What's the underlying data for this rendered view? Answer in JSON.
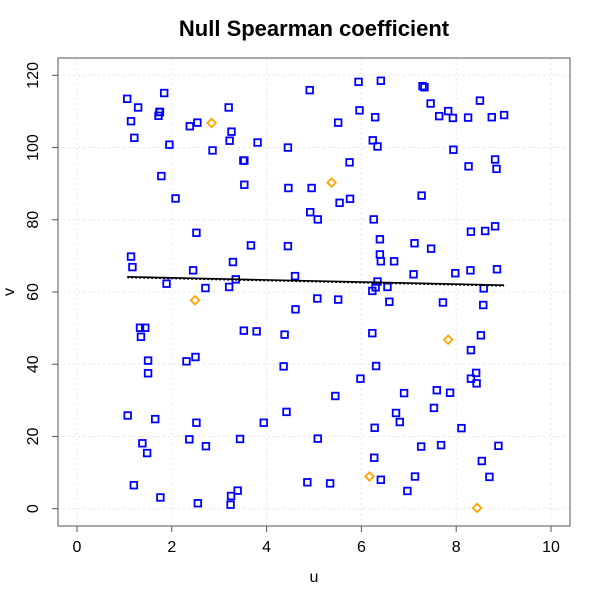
{
  "chart_data": {
    "type": "scatter",
    "title": "Null Spearman coefficient",
    "xlabel": "u",
    "ylabel": "v",
    "xlim": [
      -0.4,
      10.4
    ],
    "ylim": [
      -4.8,
      124.8
    ],
    "xticks": [
      0,
      2,
      4,
      6,
      8,
      10
    ],
    "yticks": [
      0,
      20,
      40,
      60,
      80,
      100,
      120
    ],
    "grid": true,
    "colors": {
      "main": "#0000ff",
      "outlier": "#ffa500",
      "fit": "#000000",
      "grid": "#e6e6e6"
    },
    "series": [
      {
        "marker": "square",
        "color": "#0000ff",
        "points": [
          [
            1.06,
            113.5
          ],
          [
            1.14,
            107.3
          ],
          [
            1.21,
            102.7
          ],
          [
            1.29,
            111.1
          ],
          [
            1.72,
            108.8
          ],
          [
            1.75,
            109.8
          ],
          [
            1.74,
            109.9
          ],
          [
            1.84,
            115.1
          ],
          [
            1.95,
            100.8
          ],
          [
            2.08,
            85.9
          ],
          [
            2.38,
            105.9
          ],
          [
            2.54,
            106.9
          ],
          [
            2.86,
            99.2
          ],
          [
            3.2,
            111.1
          ],
          [
            3.22,
            101.9
          ],
          [
            3.26,
            104.4
          ],
          [
            3.51,
            96.4
          ],
          [
            3.53,
            96.4
          ],
          [
            3.53,
            89.7
          ],
          [
            3.81,
            101.4
          ],
          [
            4.45,
            100.0
          ],
          [
            4.46,
            88.8
          ],
          [
            4.91,
            115.9
          ],
          [
            4.95,
            88.8
          ],
          [
            5.51,
            106.9
          ],
          [
            5.75,
            95.9
          ],
          [
            5.94,
            118.2
          ],
          [
            5.96,
            110.3
          ],
          [
            6.24,
            102.0
          ],
          [
            6.29,
            108.4
          ],
          [
            6.41,
            118.5
          ],
          [
            6.34,
            100.3
          ],
          [
            7.29,
            117.0
          ],
          [
            7.33,
            116.7
          ],
          [
            7.46,
            112.2
          ],
          [
            7.64,
            108.7
          ],
          [
            7.83,
            110.1
          ],
          [
            7.93,
            108.2
          ],
          [
            8.25,
            108.3
          ],
          [
            8.5,
            113.0
          ],
          [
            8.75,
            108.4
          ],
          [
            9.01,
            109.0
          ],
          [
            7.94,
            99.4
          ],
          [
            8.82,
            96.7
          ],
          [
            8.26,
            94.8
          ],
          [
            8.85,
            94.1
          ],
          [
            1.78,
            92.1
          ],
          [
            1.14,
            69.8
          ],
          [
            1.17,
            66.9
          ],
          [
            1.89,
            62.3
          ],
          [
            2.52,
            76.4
          ],
          [
            2.45,
            66.0
          ],
          [
            2.71,
            61.1
          ],
          [
            3.21,
            61.4
          ],
          [
            3.29,
            68.3
          ],
          [
            3.35,
            63.5
          ],
          [
            3.67,
            72.9
          ],
          [
            4.45,
            72.7
          ],
          [
            4.6,
            64.4
          ],
          [
            4.92,
            82.1
          ],
          [
            5.08,
            80.1
          ],
          [
            5.54,
            84.7
          ],
          [
            5.76,
            85.8
          ],
          [
            6.26,
            80.1
          ],
          [
            6.39,
            74.6
          ],
          [
            6.39,
            70.4
          ],
          [
            6.41,
            68.5
          ],
          [
            6.23,
            60.3
          ],
          [
            6.3,
            61.3
          ],
          [
            6.34,
            62.9
          ],
          [
            6.55,
            61.4
          ],
          [
            6.69,
            68.5
          ],
          [
            7.12,
            73.5
          ],
          [
            7.27,
            86.7
          ],
          [
            7.47,
            72.0
          ],
          [
            7.1,
            64.9
          ],
          [
            7.98,
            65.2
          ],
          [
            8.3,
            66.0
          ],
          [
            8.31,
            76.7
          ],
          [
            8.61,
            76.9
          ],
          [
            8.82,
            78.2
          ],
          [
            8.86,
            66.3
          ],
          [
            8.58,
            61.0
          ],
          [
            6.59,
            57.3
          ],
          [
            7.72,
            57.1
          ],
          [
            8.57,
            56.4
          ],
          [
            1.33,
            50.1
          ],
          [
            1.44,
            50.1
          ],
          [
            1.35,
            47.6
          ],
          [
            1.5,
            41.0
          ],
          [
            1.5,
            37.5
          ],
          [
            2.31,
            40.8
          ],
          [
            2.5,
            42.0
          ],
          [
            3.52,
            49.3
          ],
          [
            3.79,
            49.1
          ],
          [
            4.38,
            48.2
          ],
          [
            4.61,
            55.2
          ],
          [
            5.07,
            58.2
          ],
          [
            5.51,
            57.9
          ],
          [
            6.23,
            48.6
          ],
          [
            8.31,
            43.9
          ],
          [
            8.52,
            48.0
          ],
          [
            4.36,
            39.4
          ],
          [
            5.98,
            36.0
          ],
          [
            6.31,
            39.5
          ],
          [
            7.59,
            32.8
          ],
          [
            7.87,
            32.1
          ],
          [
            8.11,
            22.3
          ],
          [
            8.31,
            36.0
          ],
          [
            8.42,
            37.6
          ],
          [
            8.43,
            34.7
          ],
          [
            7.53,
            27.9
          ],
          [
            6.9,
            32.0
          ],
          [
            6.73,
            26.5
          ],
          [
            6.81,
            24.0
          ],
          [
            5.45,
            31.2
          ],
          [
            4.42,
            26.8
          ],
          [
            3.94,
            23.8
          ],
          [
            1.07,
            25.8
          ],
          [
            1.65,
            24.8
          ],
          [
            2.52,
            23.8
          ],
          [
            2.37,
            19.2
          ],
          [
            1.38,
            18.1
          ],
          [
            1.48,
            15.4
          ],
          [
            2.72,
            17.3
          ],
          [
            3.44,
            19.3
          ],
          [
            5.08,
            19.4
          ],
          [
            6.28,
            22.4
          ],
          [
            6.27,
            14.1
          ],
          [
            7.26,
            17.2
          ],
          [
            7.68,
            17.6
          ],
          [
            8.54,
            13.2
          ],
          [
            8.89,
            17.4
          ],
          [
            8.7,
            8.8
          ],
          [
            7.13,
            8.9
          ],
          [
            6.97,
            4.9
          ],
          [
            6.41,
            8.0
          ],
          [
            4.86,
            7.3
          ],
          [
            5.34,
            7.0
          ],
          [
            1.2,
            6.5
          ],
          [
            1.76,
            3.1
          ],
          [
            2.55,
            1.5
          ],
          [
            3.24,
            1.1
          ],
          [
            3.25,
            3.5
          ],
          [
            3.39,
            5.0
          ]
        ]
      },
      {
        "marker": "diamond",
        "color": "#ffa500",
        "points": [
          [
            2.84,
            106.8
          ],
          [
            5.37,
            90.3
          ],
          [
            2.49,
            57.7
          ],
          [
            7.83,
            46.8
          ],
          [
            6.17,
            8.9
          ],
          [
            8.44,
            0.2
          ]
        ]
      }
    ],
    "fit_line": {
      "x": [
        1.06,
        9.01
      ],
      "y": [
        64.2,
        61.9
      ]
    }
  }
}
